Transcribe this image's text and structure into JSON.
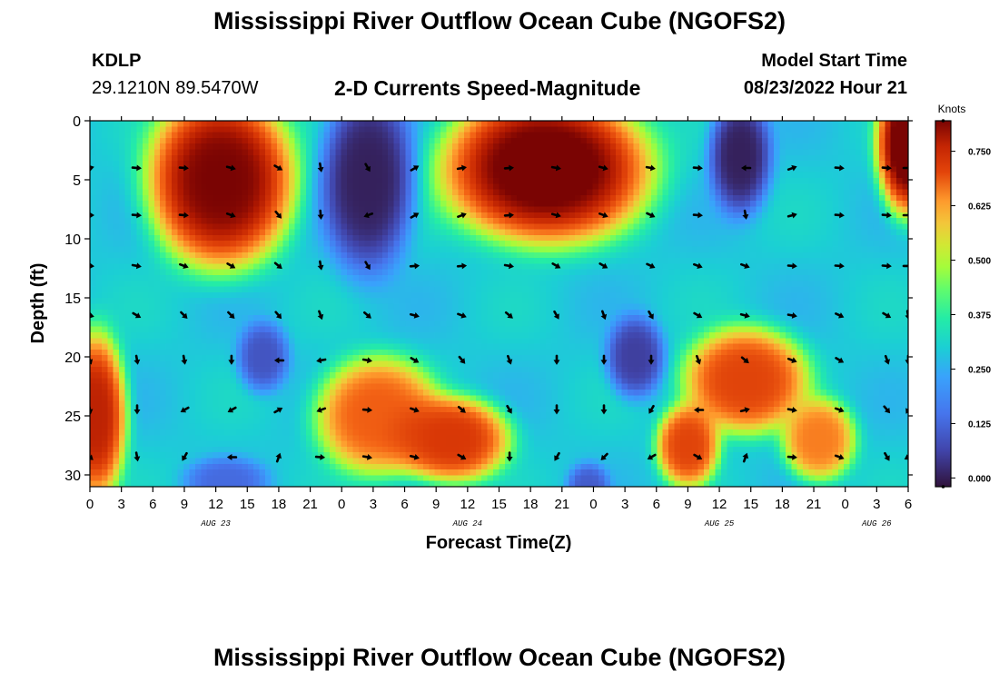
{
  "header": {
    "title": "Mississippi River Outflow Ocean Cube (NGOFS2)",
    "station": "KDLP",
    "coords": "29.1210N  89.5470W",
    "subtitle": "2-D Currents Speed-Magnitude",
    "model_start_label": "Model Start Time",
    "model_start_value": "08/23/2022 Hour 21"
  },
  "chart_data": {
    "type": "heatmap",
    "title": "2-D Currents Speed-Magnitude",
    "xlabel": "Forecast Time(Z)",
    "ylabel": "Depth (ft)",
    "x_tick_labels": [
      "0",
      "3",
      "6",
      "9",
      "12",
      "15",
      "18",
      "21",
      "0",
      "3",
      "6",
      "9",
      "12",
      "15",
      "18",
      "21",
      "0",
      "3",
      "6",
      "9",
      "12",
      "15",
      "18",
      "21",
      "0",
      "3",
      "6"
    ],
    "x_range_hours": [
      0,
      78
    ],
    "date_labels": [
      {
        "label": "AUG 23",
        "hour": 12
      },
      {
        "label": "AUG 24",
        "hour": 36
      },
      {
        "label": "AUG 25",
        "hour": 60
      },
      {
        "label": "AUG 26",
        "hour": 75
      }
    ],
    "y_ticks": [
      0,
      5,
      10,
      15,
      20,
      25,
      30
    ],
    "ylim": [
      0,
      31
    ],
    "colorbar": {
      "unit": "Knots",
      "ticks": [
        "0.750",
        "0.625",
        "0.500",
        "0.375",
        "0.250",
        "0.125",
        "0.000"
      ],
      "range": [
        -0.02,
        0.82
      ]
    },
    "features": [
      {
        "type": "high",
        "hour_center": 12.5,
        "depth_center": 5.0,
        "hour_radius": 7.0,
        "depth_radius": 7.5,
        "peak": 0.82
      },
      {
        "type": "high",
        "hour_center": 43.5,
        "depth_center": 4.0,
        "hour_radius": 10.0,
        "depth_radius": 6.5,
        "peak": 0.84
      },
      {
        "type": "high",
        "hour_center": 78.0,
        "depth_center": 2.0,
        "hour_radius": 3.0,
        "depth_radius": 6.0,
        "peak": 0.85
      },
      {
        "type": "high",
        "hour_center": 0.5,
        "depth_center": 25.0,
        "hour_radius": 3.0,
        "depth_radius": 7.0,
        "peak": 0.76
      },
      {
        "type": "high",
        "hour_center": 27.5,
        "depth_center": 25.0,
        "hour_radius": 6.0,
        "depth_radius": 5.0,
        "peak": 0.66
      },
      {
        "type": "high",
        "hour_center": 34.5,
        "depth_center": 27.0,
        "hour_radius": 5.5,
        "depth_radius": 3.6,
        "peak": 0.72
      },
      {
        "type": "high",
        "hour_center": 62.5,
        "depth_center": 22.0,
        "hour_radius": 6.0,
        "depth_radius": 4.5,
        "peak": 0.7
      },
      {
        "type": "high",
        "hour_center": 57.0,
        "depth_center": 27.5,
        "hour_radius": 3.0,
        "depth_radius": 3.5,
        "peak": 0.7
      },
      {
        "type": "high",
        "hour_center": 69.5,
        "depth_center": 27.0,
        "hour_radius": 3.5,
        "depth_radius": 3.5,
        "peak": 0.62
      },
      {
        "type": "low",
        "hour_center": 26.5,
        "depth_center": 5.0,
        "hour_radius": 4.5,
        "depth_radius": 8.0,
        "peak": 0.0
      },
      {
        "type": "low",
        "hour_center": 62.0,
        "depth_center": 3.0,
        "hour_radius": 3.0,
        "depth_radius": 5.0,
        "peak": 0.0
      },
      {
        "type": "low",
        "hour_center": 16.5,
        "depth_center": 20.0,
        "hour_radius": 2.5,
        "depth_radius": 3.0,
        "peak": 0.07
      },
      {
        "type": "low",
        "hour_center": 52.0,
        "depth_center": 20.0,
        "hour_radius": 2.8,
        "depth_radius": 3.5,
        "peak": 0.04
      },
      {
        "type": "low",
        "hour_center": 13.0,
        "depth_center": 30.5,
        "hour_radius": 4.0,
        "depth_radius": 2.0,
        "peak": 0.1
      },
      {
        "type": "low",
        "hour_center": 47.5,
        "depth_center": 31.0,
        "hour_radius": 2.0,
        "depth_radius": 2.0,
        "peak": 0.08
      }
    ],
    "vectors": {
      "hours": [
        0,
        4.5,
        9,
        13.5,
        18,
        22,
        26.5,
        31,
        35.5,
        40,
        44.5,
        49,
        53.5,
        58,
        62.5,
        67,
        71.5,
        76,
        78
      ],
      "depths": [
        4,
        8,
        12.3,
        16.5,
        20.3,
        24.5,
        28.5
      ],
      "angles_deg": [
        [
          -15,
          5,
          5,
          15,
          30,
          80,
          60,
          -30,
          -10,
          -5,
          10,
          15,
          10,
          5,
          180,
          -20,
          5,
          5,
          0
        ],
        [
          0,
          5,
          5,
          20,
          50,
          85,
          160,
          -30,
          -20,
          -5,
          15,
          20,
          25,
          5,
          80,
          -15,
          5,
          5,
          0
        ],
        [
          5,
          10,
          20,
          30,
          40,
          80,
          60,
          -5,
          -5,
          10,
          30,
          30,
          25,
          20,
          20,
          5,
          5,
          5,
          0
        ],
        [
          15,
          30,
          45,
          45,
          50,
          70,
          40,
          15,
          20,
          40,
          60,
          70,
          60,
          30,
          15,
          10,
          25,
          30,
          80
        ],
        [
          70,
          80,
          80,
          90,
          180,
          170,
          10,
          30,
          50,
          70,
          90,
          90,
          90,
          70,
          40,
          20,
          30,
          70,
          90
        ],
        [
          80,
          90,
          150,
          150,
          -30,
          160,
          5,
          20,
          40,
          60,
          90,
          90,
          120,
          180,
          -15,
          10,
          20,
          50,
          120
        ],
        [
          40,
          80,
          120,
          180,
          -70,
          5,
          10,
          15,
          30,
          90,
          120,
          135,
          150,
          30,
          -70,
          5,
          20,
          60,
          150
        ]
      ]
    }
  }
}
